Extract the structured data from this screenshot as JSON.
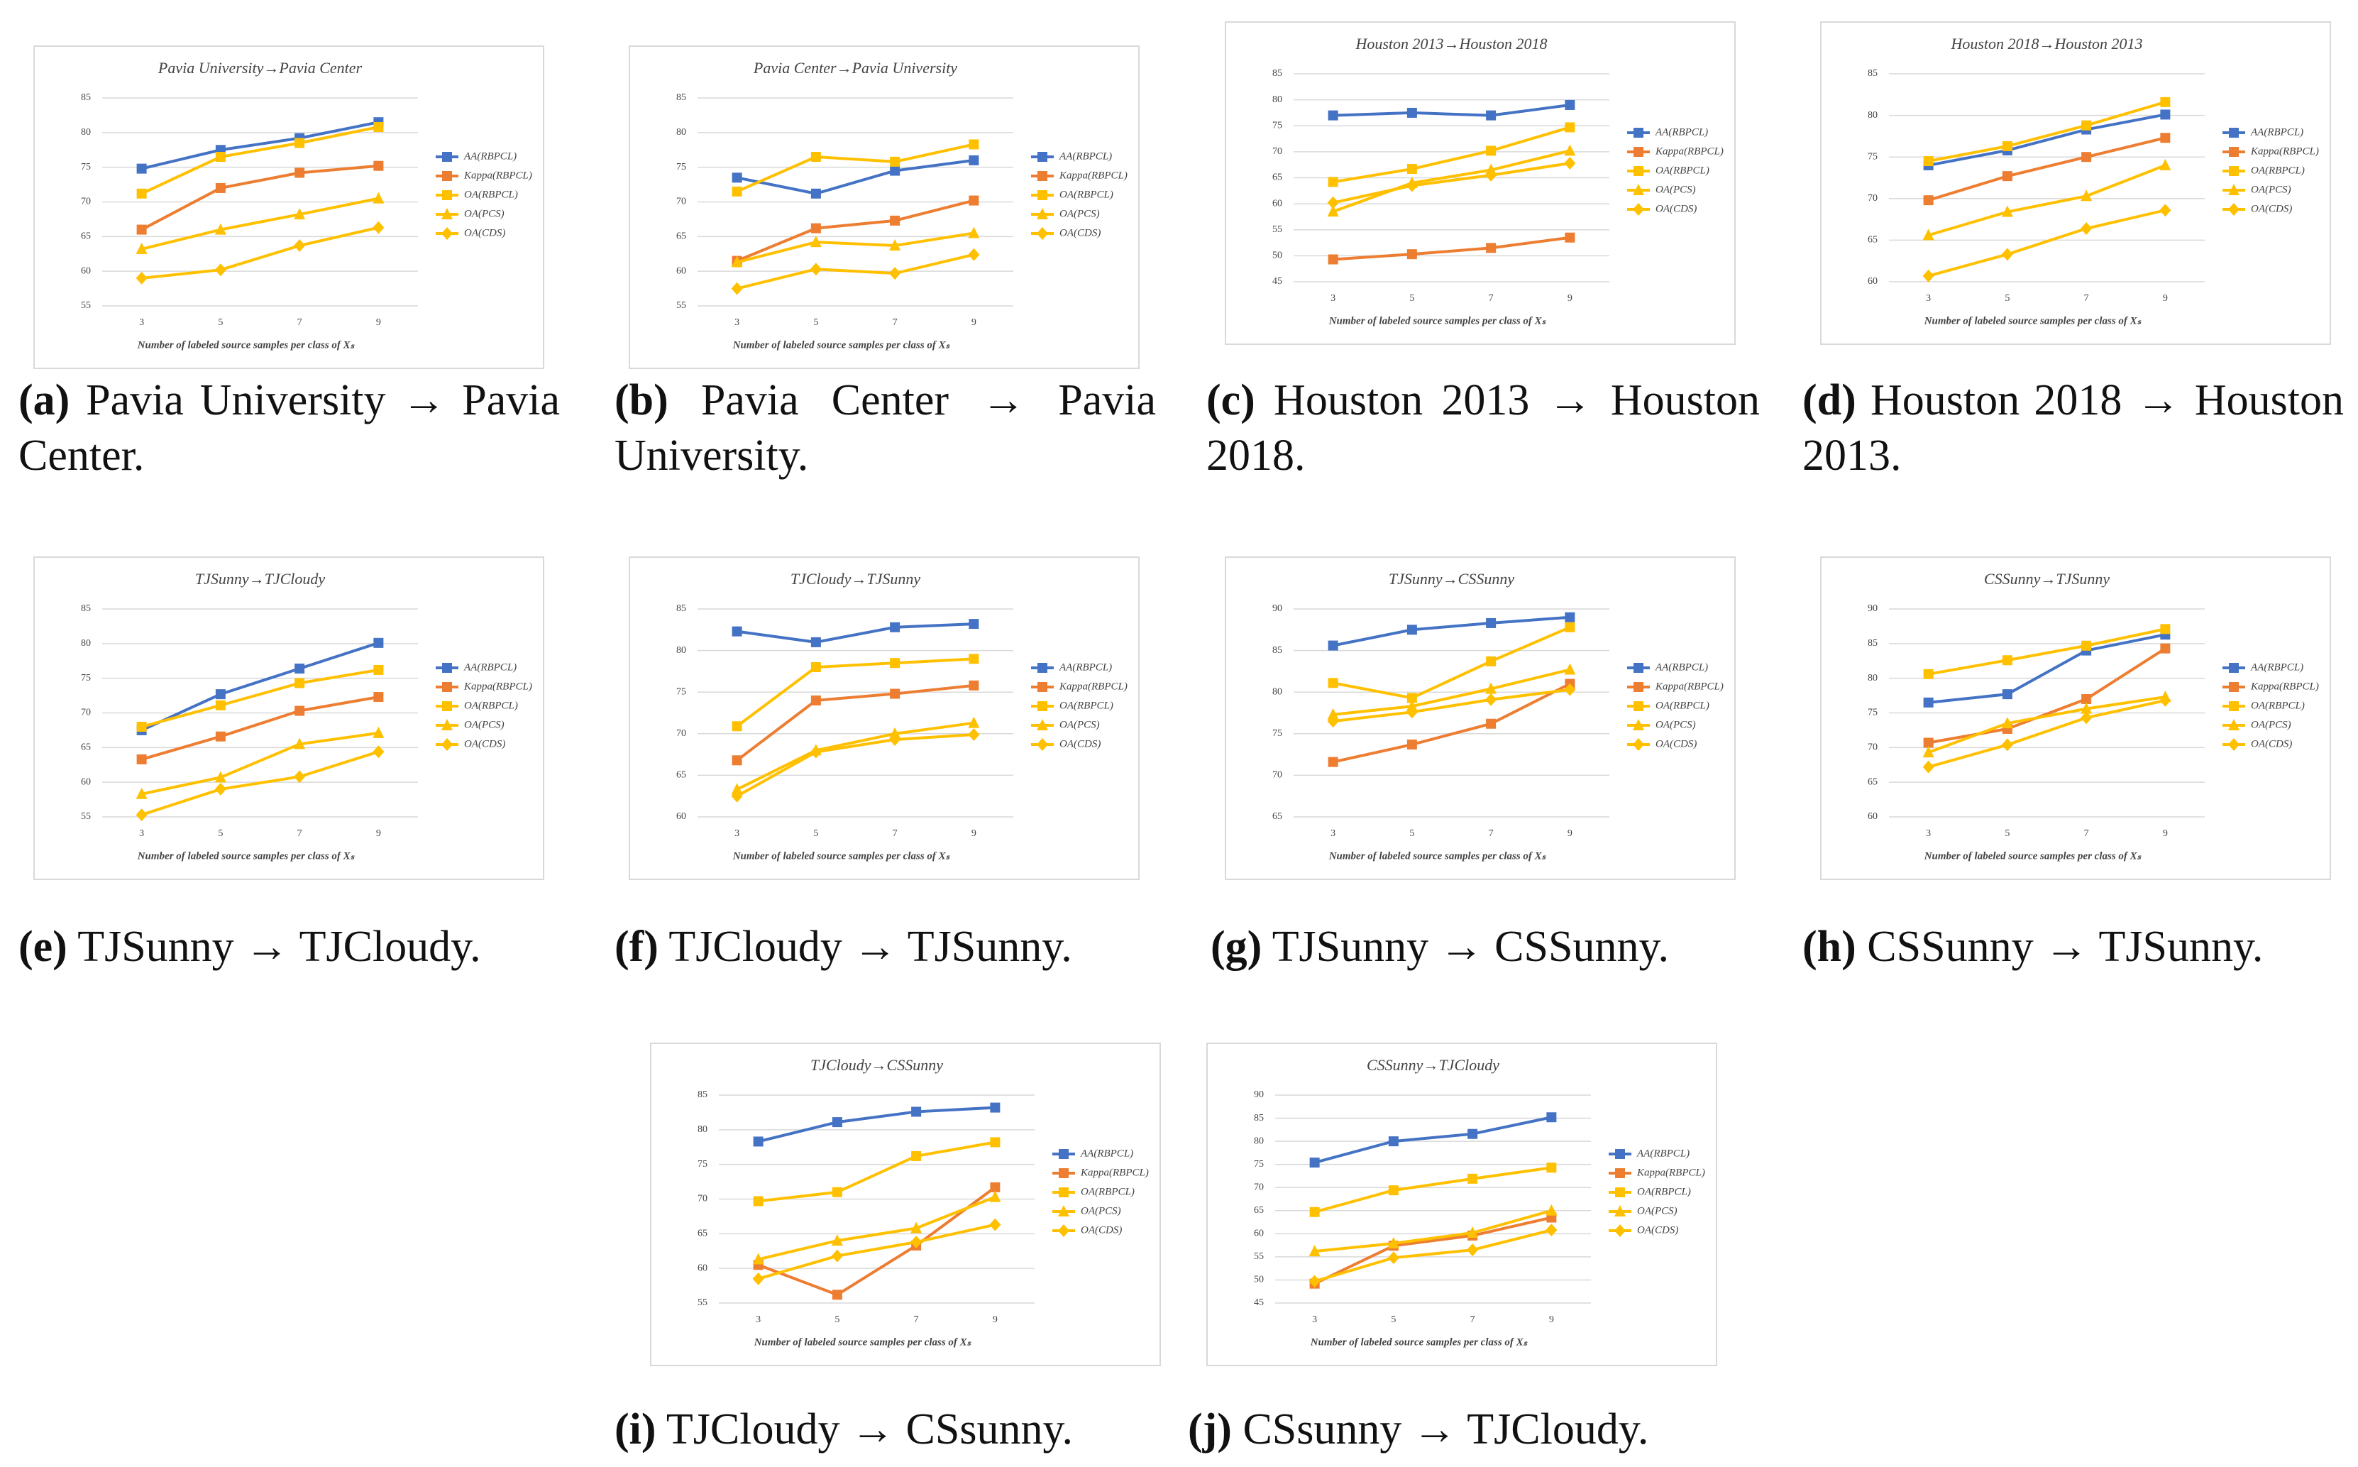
{
  "chart_data": [
    {
      "type": "line",
      "caption_label": "(a)",
      "caption": "Pavia University → Pavia Center.",
      "title": "Pavia University→Pavia Center",
      "xlabel": "Number of labeled source samples per class of Xₛ",
      "x": [
        3,
        5,
        7,
        9
      ],
      "xlim": [
        2,
        10
      ],
      "xticks": [
        3,
        5,
        7,
        9
      ],
      "ylim": [
        55,
        85
      ],
      "yticks": [
        55,
        60,
        65,
        70,
        75,
        80,
        85
      ],
      "grid": true,
      "legend": "right",
      "series": [
        {
          "name": "AA(RBPCL)",
          "color": "#4472c4",
          "marker": "square",
          "values": [
            74.8,
            77.5,
            79.2,
            81.5
          ]
        },
        {
          "name": "Kappa(RBPCL)",
          "color": "#ed7d31",
          "marker": "square",
          "values": [
            66,
            72,
            74.2,
            75.2
          ]
        },
        {
          "name": "OA(RBPCL)",
          "color": "#ffc000",
          "marker": "square",
          "values": [
            71.2,
            76.5,
            78.5,
            80.8
          ]
        },
        {
          "name": "OA(PCS)",
          "color": "#ffc000",
          "marker": "triangle",
          "values": [
            63.2,
            66,
            68.2,
            70.5
          ]
        },
        {
          "name": "OA(CDS)",
          "color": "#ffc000",
          "marker": "diamond",
          "values": [
            59,
            60.2,
            63.7,
            66.3
          ]
        }
      ]
    },
    {
      "type": "line",
      "caption_label": "(b)",
      "caption": "Pavia Center → Pavia University.",
      "title": "Pavia Center→Pavia University",
      "xlabel": "Number of labeled source samples per class of Xₛ",
      "x": [
        3,
        5,
        7,
        9
      ],
      "xlim": [
        2,
        10
      ],
      "xticks": [
        3,
        5,
        7,
        9
      ],
      "ylim": [
        55,
        85
      ],
      "yticks": [
        55,
        60,
        65,
        70,
        75,
        80,
        85
      ],
      "grid": true,
      "legend": "right",
      "series": [
        {
          "name": "AA(RBPCL)",
          "color": "#4472c4",
          "marker": "square",
          "values": [
            73.5,
            71.2,
            74.5,
            76
          ]
        },
        {
          "name": "Kappa(RBPCL)",
          "color": "#ed7d31",
          "marker": "square",
          "values": [
            61.5,
            66.2,
            67.3,
            70.2
          ]
        },
        {
          "name": "OA(RBPCL)",
          "color": "#ffc000",
          "marker": "square",
          "values": [
            71.5,
            76.5,
            75.8,
            78.3
          ]
        },
        {
          "name": "OA(PCS)",
          "color": "#ffc000",
          "marker": "triangle",
          "values": [
            61.3,
            64.2,
            63.7,
            65.5
          ]
        },
        {
          "name": "OA(CDS)",
          "color": "#ffc000",
          "marker": "diamond",
          "values": [
            57.5,
            60.3,
            59.7,
            62.4
          ]
        }
      ]
    },
    {
      "type": "line",
      "caption_label": "(c)",
      "caption": "Houston 2013 → Houston 2018.",
      "title": "Houston 2013→Houston 2018",
      "xlabel": "Number of labeled source samples per class of Xₛ",
      "x": [
        3,
        5,
        7,
        9
      ],
      "xlim": [
        2,
        10
      ],
      "xticks": [
        3,
        5,
        7,
        9
      ],
      "ylim": [
        45,
        85
      ],
      "yticks": [
        45,
        50,
        55,
        60,
        65,
        70,
        75,
        80,
        85
      ],
      "grid": true,
      "legend": "right",
      "series": [
        {
          "name": "AA(RBPCL)",
          "color": "#4472c4",
          "marker": "square",
          "values": [
            77,
            77.5,
            77,
            79
          ]
        },
        {
          "name": "Kappa(RBPCL)",
          "color": "#ed7d31",
          "marker": "square",
          "values": [
            49.3,
            50.3,
            51.5,
            53.5
          ]
        },
        {
          "name": "OA(RBPCL)",
          "color": "#ffc000",
          "marker": "square",
          "values": [
            64.2,
            66.7,
            70.2,
            74.7
          ]
        },
        {
          "name": "OA(PCS)",
          "color": "#ffc000",
          "marker": "triangle",
          "values": [
            58.5,
            64,
            66.5,
            70.2
          ]
        },
        {
          "name": "OA(CDS)",
          "color": "#ffc000",
          "marker": "diamond",
          "values": [
            60.2,
            63.5,
            65.5,
            67.8
          ]
        }
      ]
    },
    {
      "type": "line",
      "caption_label": "(d)",
      "caption": "Houston 2018 → Houston 2013.",
      "title": "Houston 2018→Houston 2013",
      "xlabel": "Number of labeled source samples per class of Xₛ",
      "x": [
        3,
        5,
        7,
        9
      ],
      "xlim": [
        2,
        10
      ],
      "xticks": [
        3,
        5,
        7,
        9
      ],
      "ylim": [
        60,
        85
      ],
      "yticks": [
        60,
        65,
        70,
        75,
        80,
        85
      ],
      "grid": true,
      "legend": "right",
      "series": [
        {
          "name": "AA(RBPCL)",
          "color": "#4472c4",
          "marker": "square",
          "values": [
            74,
            75.8,
            78.3,
            80.1
          ]
        },
        {
          "name": "Kappa(RBPCL)",
          "color": "#ed7d31",
          "marker": "square",
          "values": [
            69.8,
            72.7,
            75,
            77.3
          ]
        },
        {
          "name": "OA(RBPCL)",
          "color": "#ffc000",
          "marker": "square",
          "values": [
            74.5,
            76.3,
            78.8,
            81.6
          ]
        },
        {
          "name": "OA(PCS)",
          "color": "#ffc000",
          "marker": "triangle",
          "values": [
            65.6,
            68.4,
            70.3,
            74
          ]
        },
        {
          "name": "OA(CDS)",
          "color": "#ffc000",
          "marker": "diamond",
          "values": [
            60.7,
            63.3,
            66.4,
            68.6
          ]
        }
      ]
    },
    {
      "type": "line",
      "caption_label": "(e)",
      "caption": "TJSunny → TJCloudy.",
      "title": "TJSunny→TJCloudy",
      "xlabel": "Number of labeled source samples per class of Xₛ",
      "x": [
        3,
        5,
        7,
        9
      ],
      "xlim": [
        2,
        10
      ],
      "xticks": [
        3,
        5,
        7,
        9
      ],
      "ylim": [
        55,
        85
      ],
      "yticks": [
        55,
        60,
        65,
        70,
        75,
        80,
        85
      ],
      "grid": true,
      "legend": "right",
      "series": [
        {
          "name": "AA(RBPCL)",
          "color": "#4472c4",
          "marker": "square",
          "values": [
            67.5,
            72.7,
            76.4,
            80.1
          ]
        },
        {
          "name": "Kappa(RBPCL)",
          "color": "#ed7d31",
          "marker": "square",
          "values": [
            63.3,
            66.6,
            70.3,
            72.3
          ]
        },
        {
          "name": "OA(RBPCL)",
          "color": "#ffc000",
          "marker": "square",
          "values": [
            68,
            71.1,
            74.3,
            76.2
          ]
        },
        {
          "name": "OA(PCS)",
          "color": "#ffc000",
          "marker": "triangle",
          "values": [
            58.3,
            60.7,
            65.5,
            67.1
          ]
        },
        {
          "name": "OA(CDS)",
          "color": "#ffc000",
          "marker": "diamond",
          "values": [
            55.3,
            59,
            60.8,
            64.4
          ]
        }
      ]
    },
    {
      "type": "line",
      "caption_label": "(f)",
      "caption": "TJCloudy → TJSunny.",
      "title": "TJCloudy→TJSunny",
      "xlabel": "Number of labeled source samples per class of Xₛ",
      "x": [
        3,
        5,
        7,
        9
      ],
      "xlim": [
        2,
        10
      ],
      "xticks": [
        3,
        5,
        7,
        9
      ],
      "ylim": [
        60,
        85
      ],
      "yticks": [
        60,
        65,
        70,
        75,
        80,
        85
      ],
      "grid": true,
      "legend": "right",
      "series": [
        {
          "name": "AA(RBPCL)",
          "color": "#4472c4",
          "marker": "square",
          "values": [
            82.3,
            81,
            82.8,
            83.2
          ]
        },
        {
          "name": "Kappa(RBPCL)",
          "color": "#ed7d31",
          "marker": "square",
          "values": [
            66.8,
            74,
            74.8,
            75.8
          ]
        },
        {
          "name": "OA(RBPCL)",
          "color": "#ffc000",
          "marker": "square",
          "values": [
            70.9,
            78,
            78.5,
            79
          ]
        },
        {
          "name": "OA(PCS)",
          "color": "#ffc000",
          "marker": "triangle",
          "values": [
            63.3,
            68,
            70,
            71.3
          ]
        },
        {
          "name": "OA(CDS)",
          "color": "#ffc000",
          "marker": "diamond",
          "values": [
            62.5,
            67.8,
            69.3,
            69.9
          ]
        }
      ]
    },
    {
      "type": "line",
      "caption_label": "(g)",
      "caption": "TJSunny → CSSunny.",
      "title": "TJSunny→CSSunny",
      "xlabel": "Number of labeled source samples per class of Xₛ",
      "x": [
        3,
        5,
        7,
        9
      ],
      "xlim": [
        2,
        10
      ],
      "xticks": [
        3,
        5,
        7,
        9
      ],
      "ylim": [
        65,
        90
      ],
      "yticks": [
        65,
        70,
        75,
        80,
        85,
        90
      ],
      "grid": true,
      "legend": "right",
      "series": [
        {
          "name": "AA(RBPCL)",
          "color": "#4472c4",
          "marker": "square",
          "values": [
            85.6,
            87.5,
            88.3,
            89
          ]
        },
        {
          "name": "Kappa(RBPCL)",
          "color": "#ed7d31",
          "marker": "square",
          "values": [
            71.6,
            73.7,
            76.2,
            81
          ]
        },
        {
          "name": "OA(RBPCL)",
          "color": "#ffc000",
          "marker": "square",
          "values": [
            81.1,
            79.3,
            83.7,
            87.8
          ]
        },
        {
          "name": "OA(PCS)",
          "color": "#ffc000",
          "marker": "triangle",
          "values": [
            77.3,
            78.3,
            80.4,
            82.7
          ]
        },
        {
          "name": "OA(CDS)",
          "color": "#ffc000",
          "marker": "diamond",
          "values": [
            76.5,
            77.6,
            79.1,
            80.3
          ]
        }
      ]
    },
    {
      "type": "line",
      "caption_label": "(h)",
      "caption": "CSSunny → TJSunny.",
      "title": "CSSunny→TJSunny",
      "xlabel": "Number of labeled source samples per class of Xₛ",
      "x": [
        3,
        5,
        7,
        9
      ],
      "xlim": [
        2,
        10
      ],
      "xticks": [
        3,
        5,
        7,
        9
      ],
      "ylim": [
        60,
        90
      ],
      "yticks": [
        60,
        65,
        70,
        75,
        80,
        85,
        90
      ],
      "grid": true,
      "legend": "right",
      "series": [
        {
          "name": "AA(RBPCL)",
          "color": "#4472c4",
          "marker": "square",
          "values": [
            76.5,
            77.7,
            84,
            86.3
          ]
        },
        {
          "name": "Kappa(RBPCL)",
          "color": "#ed7d31",
          "marker": "square",
          "values": [
            70.7,
            72.7,
            77,
            84.3
          ]
        },
        {
          "name": "OA(RBPCL)",
          "color": "#ffc000",
          "marker": "square",
          "values": [
            80.6,
            82.6,
            84.7,
            87.1
          ]
        },
        {
          "name": "OA(PCS)",
          "color": "#ffc000",
          "marker": "triangle",
          "values": [
            69.3,
            73.5,
            75.6,
            77.3
          ]
        },
        {
          "name": "OA(CDS)",
          "color": "#ffc000",
          "marker": "diamond",
          "values": [
            67.2,
            70.4,
            74.3,
            76.8
          ]
        }
      ]
    },
    {
      "type": "line",
      "caption_label": "(i)",
      "caption": "TJCloudy → CSsunny.",
      "title": "TJCloudy→CSSunny",
      "xlabel": "Number of labeled source samples per class of Xₛ",
      "x": [
        3,
        5,
        7,
        9
      ],
      "xlim": [
        2,
        10
      ],
      "xticks": [
        3,
        5,
        7,
        9
      ],
      "ylim": [
        55,
        85
      ],
      "yticks": [
        55,
        60,
        65,
        70,
        75,
        80,
        85
      ],
      "grid": true,
      "legend": "right",
      "series": [
        {
          "name": "AA(RBPCL)",
          "color": "#4472c4",
          "marker": "square",
          "values": [
            78.3,
            81.1,
            82.6,
            83.2
          ]
        },
        {
          "name": "Kappa(RBPCL)",
          "color": "#ed7d31",
          "marker": "square",
          "values": [
            60.5,
            56.2,
            63.3,
            71.7
          ]
        },
        {
          "name": "OA(RBPCL)",
          "color": "#ffc000",
          "marker": "square",
          "values": [
            69.7,
            71,
            76.2,
            78.2
          ]
        },
        {
          "name": "OA(PCS)",
          "color": "#ffc000",
          "marker": "triangle",
          "values": [
            61.3,
            64,
            65.8,
            70.3
          ]
        },
        {
          "name": "OA(CDS)",
          "color": "#ffc000",
          "marker": "diamond",
          "values": [
            58.5,
            61.8,
            63.8,
            66.3
          ]
        }
      ]
    },
    {
      "type": "line",
      "caption_label": "(j)",
      "caption": "CSsunny → TJCloudy.",
      "title": "CSSunny→TJCloudy",
      "xlabel": "Number of labeled source samples per class of Xₛ",
      "x": [
        3,
        5,
        7,
        9
      ],
      "xlim": [
        2,
        10
      ],
      "xticks": [
        3,
        5,
        7,
        9
      ],
      "ylim": [
        45,
        90
      ],
      "yticks": [
        45,
        50,
        55,
        60,
        65,
        70,
        75,
        80,
        85,
        90
      ],
      "grid": true,
      "legend": "right",
      "series": [
        {
          "name": "AA(RBPCL)",
          "color": "#4472c4",
          "marker": "square",
          "values": [
            75.4,
            80,
            81.6,
            85.2
          ]
        },
        {
          "name": "Kappa(RBPCL)",
          "color": "#ed7d31",
          "marker": "square",
          "values": [
            49.2,
            57.4,
            59.6,
            63.5
          ]
        },
        {
          "name": "OA(RBPCL)",
          "color": "#ffc000",
          "marker": "square",
          "values": [
            64.7,
            69.4,
            71.9,
            74.3
          ]
        },
        {
          "name": "OA(PCS)",
          "color": "#ffc000",
          "marker": "triangle",
          "values": [
            56.2,
            57.9,
            60.2,
            65
          ]
        },
        {
          "name": "OA(CDS)",
          "color": "#ffc000",
          "marker": "diamond",
          "values": [
            49.7,
            54.8,
            56.5,
            60.8
          ]
        }
      ]
    }
  ]
}
